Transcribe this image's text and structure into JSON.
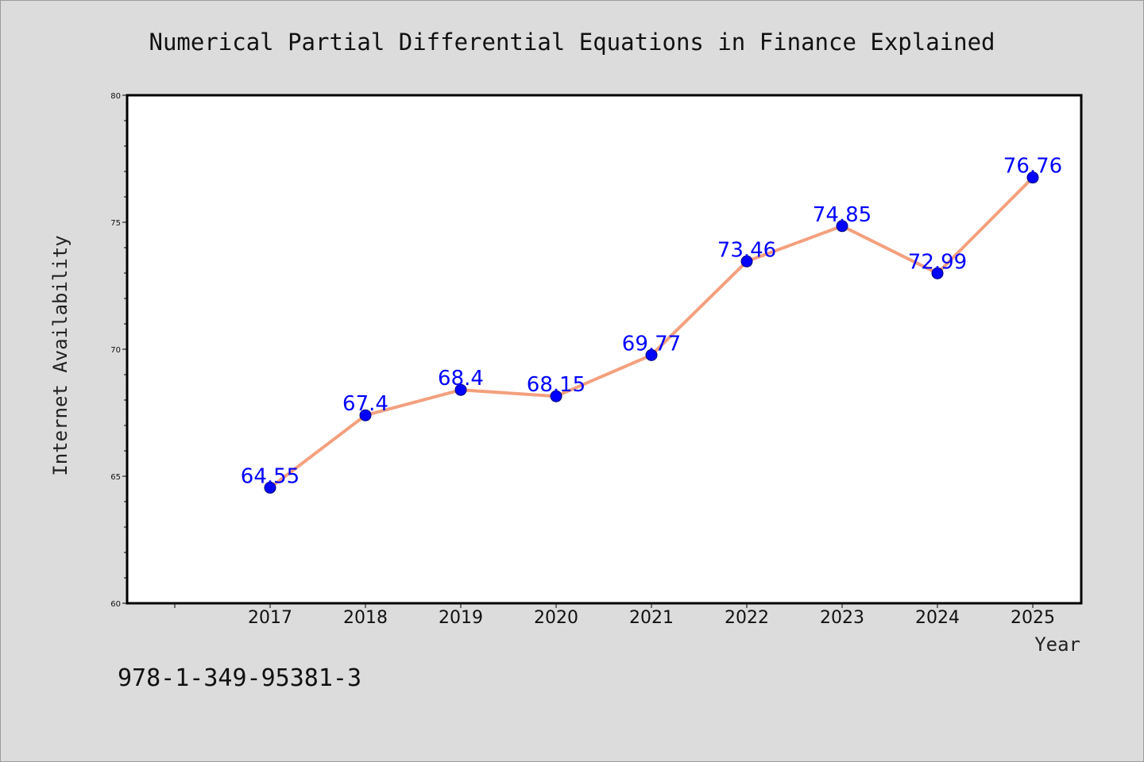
{
  "chart_data": {
    "type": "line",
    "title": "Numerical Partial Differential Equations in Finance Explained",
    "xlabel": "Year",
    "ylabel": "Internet Availability",
    "categories": [
      "2017",
      "2018",
      "2019",
      "2020",
      "2021",
      "2022",
      "2023",
      "2024",
      "2025"
    ],
    "values": [
      64.55,
      67.4,
      68.4,
      68.15,
      69.77,
      73.46,
      74.85,
      72.99,
      76.76
    ],
    "data_labels": [
      "64.55",
      "67.4",
      "68.4",
      "68.15",
      "69.77",
      "73.46",
      "74.85",
      "72.99",
      "76.76"
    ],
    "ylim": [
      60,
      80
    ],
    "yticks": [
      "60",
      "65",
      "70",
      "75",
      "80"
    ],
    "grid": false,
    "legend": "none",
    "line_color": "#f4a07e",
    "marker_color": "#0000ff",
    "label_color": "#0000ff"
  },
  "footer": {
    "isbn": "978-1-349-95381-3"
  }
}
